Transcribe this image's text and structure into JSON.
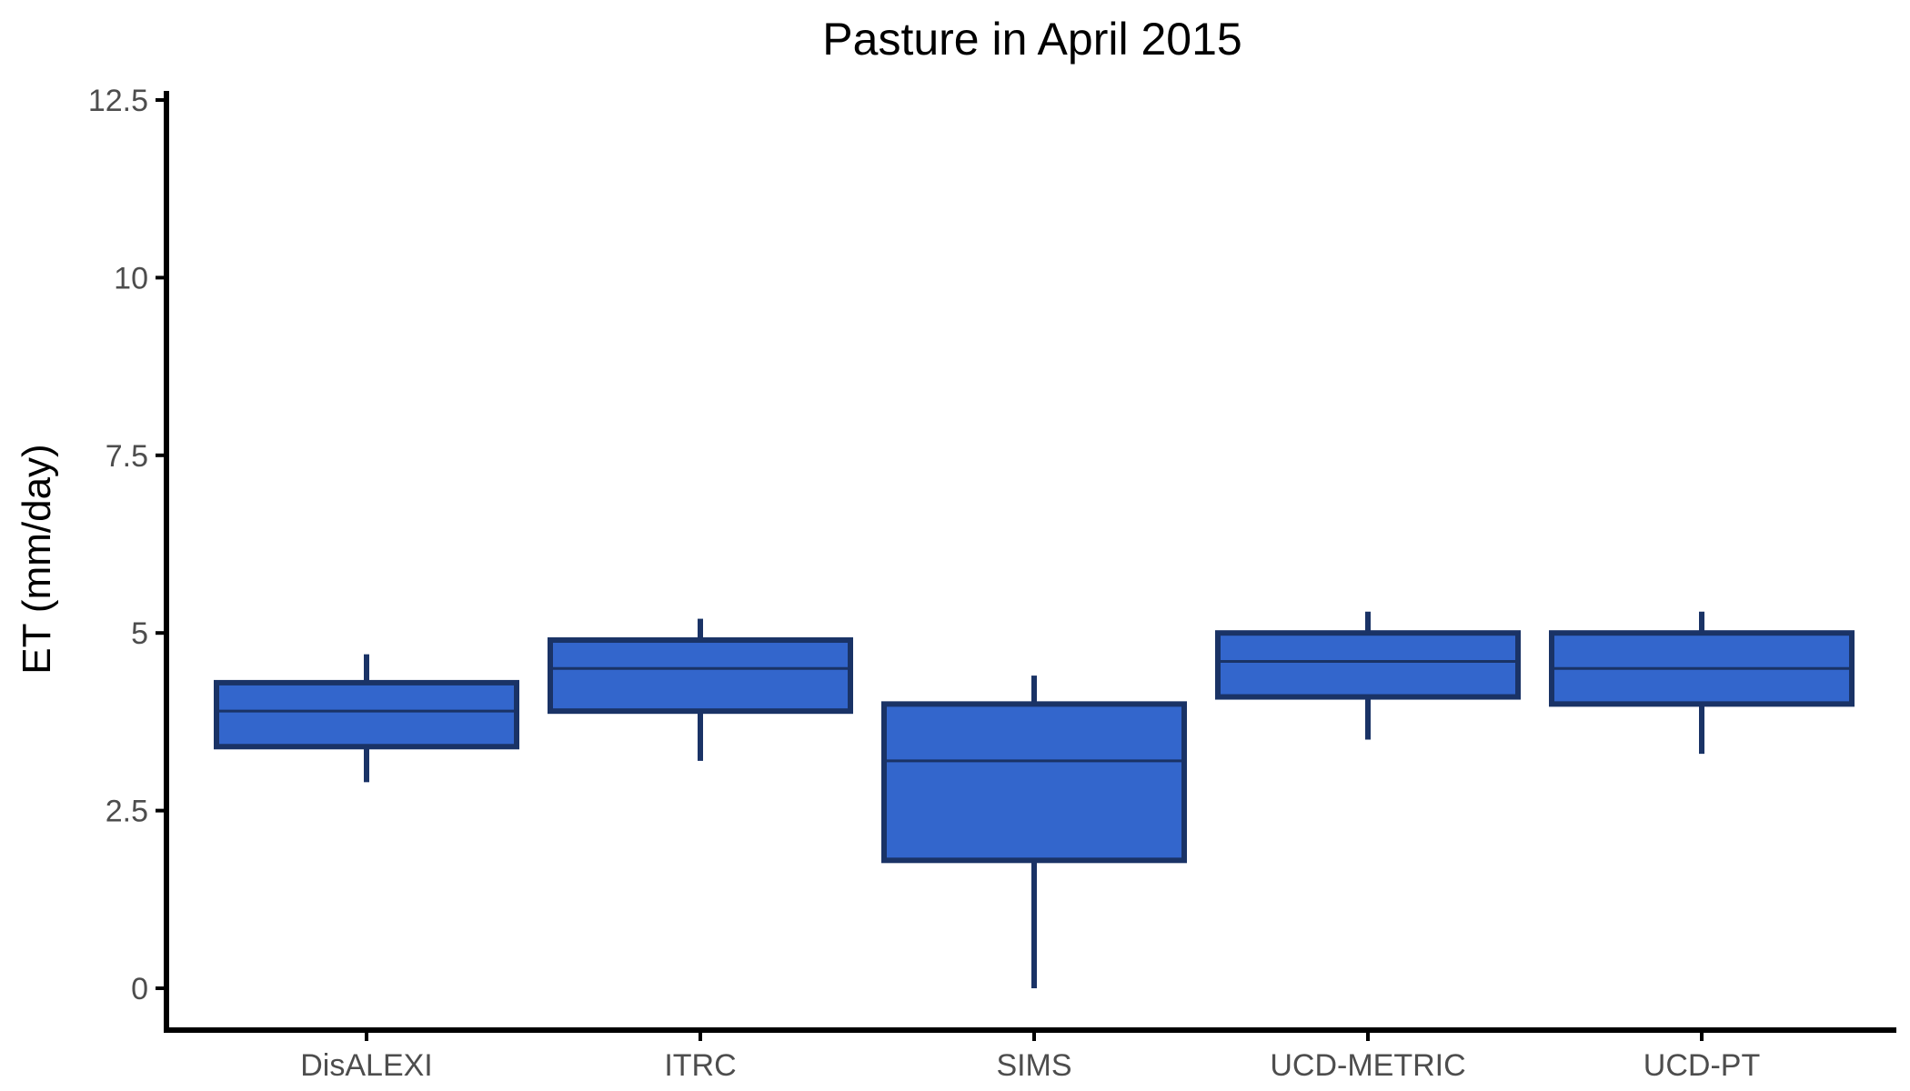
{
  "chart_data": {
    "type": "boxplot",
    "title": "Pasture in April 2015",
    "xlabel": "",
    "ylabel": "ET (mm/day)",
    "ylim": [
      -0.6,
      12.5
    ],
    "yticks": [
      0,
      2.5,
      5,
      7.5,
      10,
      12.5
    ],
    "ytick_labels": [
      "0",
      "2.5",
      "5",
      "7.5",
      "10",
      "12.5"
    ],
    "categories": [
      "DisALEXI",
      "ITRC",
      "SIMS",
      "UCD-METRIC",
      "UCD-PT"
    ],
    "boxes": [
      {
        "category": "DisALEXI",
        "min": 2.9,
        "q1": 3.4,
        "median": 3.9,
        "q3": 4.3,
        "max": 4.7
      },
      {
        "category": "ITRC",
        "min": 3.2,
        "q1": 3.9,
        "median": 4.5,
        "q3": 4.9,
        "max": 5.2
      },
      {
        "category": "SIMS",
        "min": 0.0,
        "q1": 1.8,
        "median": 3.2,
        "q3": 4.0,
        "max": 4.4
      },
      {
        "category": "UCD-METRIC",
        "min": 3.5,
        "q1": 4.1,
        "median": 4.6,
        "q3": 5.0,
        "max": 5.3
      },
      {
        "category": "UCD-PT",
        "min": 3.3,
        "q1": 4.0,
        "median": 4.5,
        "q3": 5.0,
        "max": 5.3
      }
    ],
    "grid": false,
    "legend": "none",
    "colors": {
      "fill": "#3366cc",
      "stroke": "#1a3366",
      "axis": "#000000"
    }
  }
}
